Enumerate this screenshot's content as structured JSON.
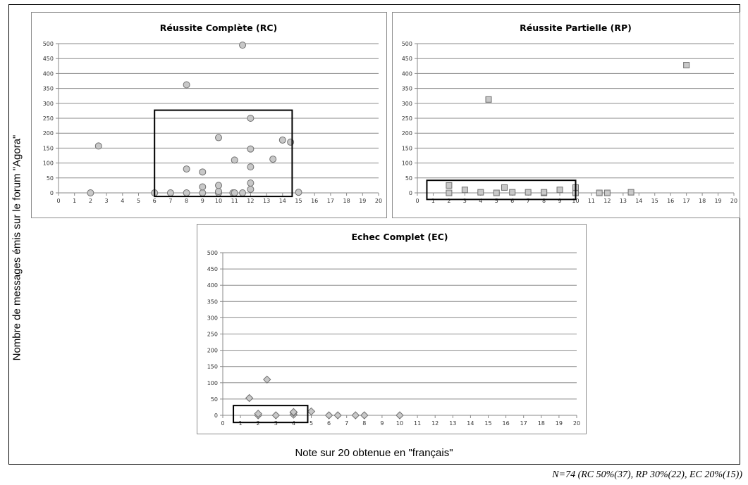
{
  "ylabel": "Nombre de messages émis sur le forum \"Agora\"",
  "xlabel": "Note sur 20 obtenue en \"français\"",
  "footnote": "N=74 (RC 50%(37), RP 30%(22), EC 20%(15))",
  "chart_data": [
    {
      "type": "scatter",
      "title": "Réussite Complète (RC)",
      "marker": "circle",
      "color": "#c8c8c8",
      "xlim": [
        0,
        20
      ],
      "ylim": [
        0,
        500
      ],
      "xticks": [
        0,
        1,
        2,
        3,
        4,
        5,
        6,
        7,
        8,
        9,
        10,
        11,
        12,
        13,
        14,
        15,
        16,
        17,
        18,
        19,
        20
      ],
      "yticks": [
        0,
        50,
        100,
        150,
        200,
        250,
        300,
        350,
        400,
        450,
        500
      ],
      "grid": true,
      "highlight_box": {
        "x": [
          6,
          14.6
        ],
        "y": [
          -12,
          277
        ]
      },
      "points": [
        {
          "x": 2,
          "y": 0
        },
        {
          "x": 2.5,
          "y": 157
        },
        {
          "x": 6,
          "y": 0
        },
        {
          "x": 7,
          "y": 0
        },
        {
          "x": 8,
          "y": 0
        },
        {
          "x": 8,
          "y": 80
        },
        {
          "x": 8,
          "y": 362
        },
        {
          "x": 9,
          "y": 0
        },
        {
          "x": 9,
          "y": 20
        },
        {
          "x": 9,
          "y": 70
        },
        {
          "x": 10,
          "y": 0
        },
        {
          "x": 10,
          "y": 5
        },
        {
          "x": 10,
          "y": 25
        },
        {
          "x": 10,
          "y": 185
        },
        {
          "x": 10.9,
          "y": 0
        },
        {
          "x": 11,
          "y": 0
        },
        {
          "x": 11,
          "y": 110
        },
        {
          "x": 11.5,
          "y": 0
        },
        {
          "x": 11.5,
          "y": 495
        },
        {
          "x": 12,
          "y": 12
        },
        {
          "x": 12,
          "y": 33
        },
        {
          "x": 12,
          "y": 87
        },
        {
          "x": 12,
          "y": 147
        },
        {
          "x": 12,
          "y": 250
        },
        {
          "x": 13.4,
          "y": 113
        },
        {
          "x": 14,
          "y": 177
        },
        {
          "x": 14.5,
          "y": 170
        },
        {
          "x": 15,
          "y": 2
        }
      ]
    },
    {
      "type": "scatter",
      "title": "Réussite Partielle (RP)",
      "marker": "square",
      "color": "#c8c8c8",
      "xlim": [
        0,
        20
      ],
      "ylim": [
        0,
        500
      ],
      "xticks": [
        0,
        1,
        2,
        3,
        4,
        5,
        6,
        7,
        8,
        9,
        10,
        11,
        12,
        13,
        14,
        15,
        16,
        17,
        18,
        19,
        20
      ],
      "yticks": [
        0,
        50,
        100,
        150,
        200,
        250,
        300,
        350,
        400,
        450,
        500
      ],
      "grid": true,
      "highlight_box": {
        "x": [
          0.6,
          10
        ],
        "y": [
          -22,
          42
        ]
      },
      "points": [
        {
          "x": 2,
          "y": 0
        },
        {
          "x": 2,
          "y": 25
        },
        {
          "x": 3,
          "y": 10
        },
        {
          "x": 4,
          "y": 2
        },
        {
          "x": 4.5,
          "y": 313
        },
        {
          "x": 5,
          "y": 0
        },
        {
          "x": 5.5,
          "y": 18
        },
        {
          "x": 6,
          "y": 2
        },
        {
          "x": 7,
          "y": 2
        },
        {
          "x": 8,
          "y": 0
        },
        {
          "x": 8,
          "y": 2
        },
        {
          "x": 9,
          "y": 10
        },
        {
          "x": 10,
          "y": 0
        },
        {
          "x": 10,
          "y": 18
        },
        {
          "x": 11.5,
          "y": 0
        },
        {
          "x": 12,
          "y": 0
        },
        {
          "x": 13.5,
          "y": 2
        },
        {
          "x": 17,
          "y": 428
        }
      ]
    },
    {
      "type": "scatter",
      "title": "Echec Complet (EC)",
      "marker": "diamond",
      "color": "#c8c8c8",
      "xlim": [
        0,
        20
      ],
      "ylim": [
        0,
        500
      ],
      "xticks": [
        0,
        1,
        2,
        3,
        4,
        5,
        6,
        7,
        8,
        9,
        10,
        11,
        12,
        13,
        14,
        15,
        16,
        17,
        18,
        19,
        20
      ],
      "yticks": [
        0,
        50,
        100,
        150,
        200,
        250,
        300,
        350,
        400,
        450,
        500
      ],
      "grid": true,
      "highlight_box": {
        "x": [
          0.6,
          4.8
        ],
        "y": [
          -22,
          30
        ]
      },
      "points": [
        {
          "x": 1.5,
          "y": 53
        },
        {
          "x": 2,
          "y": 0
        },
        {
          "x": 2,
          "y": 5
        },
        {
          "x": 2.5,
          "y": 110
        },
        {
          "x": 3,
          "y": 0
        },
        {
          "x": 4,
          "y": 2
        },
        {
          "x": 4,
          "y": 8
        },
        {
          "x": 4,
          "y": 10
        },
        {
          "x": 5,
          "y": 12
        },
        {
          "x": 6,
          "y": 0
        },
        {
          "x": 6.5,
          "y": 0
        },
        {
          "x": 7.5,
          "y": 0
        },
        {
          "x": 8,
          "y": 0
        },
        {
          "x": 10,
          "y": 0
        }
      ]
    }
  ]
}
